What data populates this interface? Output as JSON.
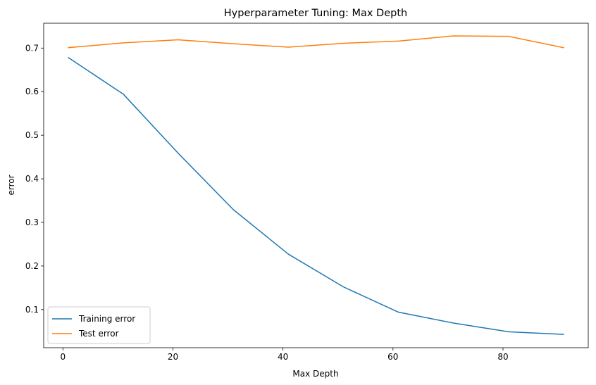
{
  "chart_data": {
    "type": "line",
    "title": "Hyperparameter Tuning: Max Depth",
    "xlabel": "Max Depth",
    "ylabel": "error",
    "xlim": [
      -3.5,
      95.5
    ],
    "ylim": [
      0.0125,
      0.757
    ],
    "xticks": [
      0,
      20,
      40,
      60,
      80
    ],
    "yticks": [
      0.1,
      0.2,
      0.3,
      0.4,
      0.5,
      0.6,
      0.7
    ],
    "x": [
      1,
      11,
      21,
      31,
      41,
      51,
      61,
      71,
      81,
      91
    ],
    "series": [
      {
        "name": "Training error",
        "color": "#1f77b4",
        "values": [
          0.678,
          0.594,
          0.458,
          0.329,
          0.227,
          0.152,
          0.094,
          0.069,
          0.049,
          0.043
        ]
      },
      {
        "name": "Test error",
        "color": "#ff7f0e",
        "values": [
          0.701,
          0.712,
          0.719,
          0.71,
          0.702,
          0.711,
          0.716,
          0.728,
          0.727,
          0.701
        ]
      }
    ],
    "legend_position": "lower-left",
    "grid": false
  }
}
